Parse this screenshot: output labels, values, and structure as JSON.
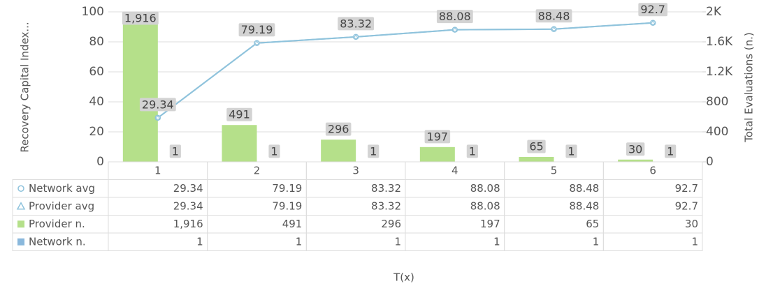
{
  "chart_data": {
    "type": "bar",
    "x_label": "T(x)",
    "y_label": "Recovery Capital Index...",
    "y2_label": "Total Evaluations (n.)",
    "categories": [
      "1",
      "2",
      "3",
      "4",
      "5",
      "6"
    ],
    "ylim": [
      0,
      100
    ],
    "yticks": [
      0,
      20,
      40,
      60,
      80,
      100
    ],
    "y2lim": [
      0,
      2000
    ],
    "y2ticks": [
      0,
      400,
      800,
      {
        "value": 1200,
        "label": "1.2K"
      },
      {
        "value": 1600,
        "label": "1.6K"
      },
      {
        "value": 2000,
        "label": "2K"
      }
    ],
    "grid": true,
    "series": [
      {
        "name": "Network avg",
        "type": "line",
        "marker": "circle",
        "color": "#8fc3dc",
        "values": [
          29.34,
          79.19,
          83.32,
          88.08,
          88.48,
          92.7
        ]
      },
      {
        "name": "Provider avg",
        "type": "line",
        "marker": "triangle",
        "color": "#8fc3dc",
        "values": [
          29.34,
          79.19,
          83.32,
          88.08,
          88.48,
          92.7
        ]
      },
      {
        "name": "Provider n.",
        "type": "bar",
        "axis": "y2",
        "color": "#b5e08a",
        "values": [
          1916,
          491,
          296,
          197,
          65,
          30
        ],
        "value_labels": [
          "1,916",
          "491",
          "296",
          "197",
          "65",
          "30"
        ]
      },
      {
        "name": "Network n.",
        "type": "bar",
        "axis": "y2",
        "color": "#8ab8dc",
        "values": [
          1,
          1,
          1,
          1,
          1,
          1
        ]
      }
    ]
  }
}
